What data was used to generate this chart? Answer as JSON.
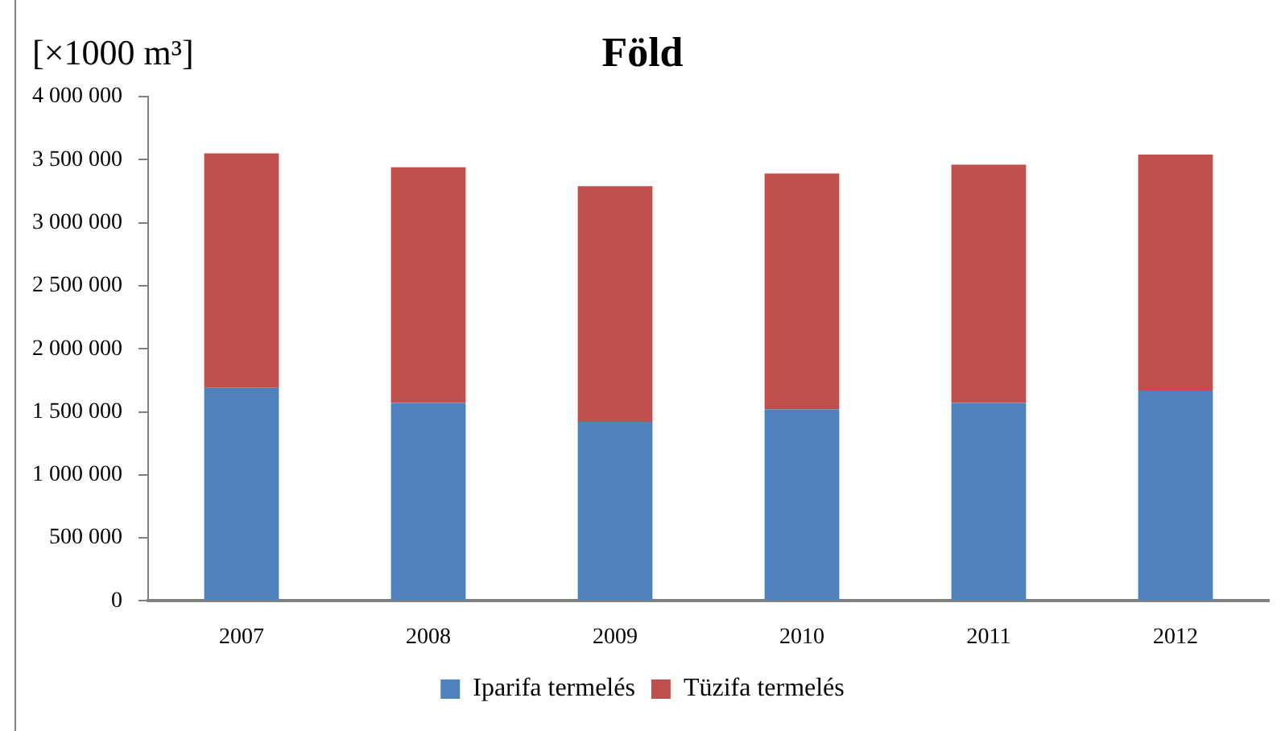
{
  "chart_data": {
    "type": "bar",
    "title": "Föld",
    "ylabel": "[×1000 m³]",
    "categories": [
      "2007",
      "2008",
      "2009",
      "2010",
      "2011",
      "2012"
    ],
    "stacked": true,
    "series": [
      {
        "name": "Iparifa termelés",
        "color": "#4f81bd",
        "values": [
          1690000,
          1570000,
          1420000,
          1520000,
          1570000,
          1670000
        ]
      },
      {
        "name": "Tüzifa termelés",
        "color": "#c0504d",
        "values": [
          1860000,
          1870000,
          1870000,
          1870000,
          1890000,
          1870000
        ]
      }
    ],
    "ylim": [
      0,
      4000000
    ],
    "yticks": [
      {
        "value": 0,
        "label": "0"
      },
      {
        "value": 500000,
        "label": "500 000"
      },
      {
        "value": 1000000,
        "label": "1 000 000"
      },
      {
        "value": 1500000,
        "label": "1 500 000"
      },
      {
        "value": 2000000,
        "label": "2 000 000"
      },
      {
        "value": 2500000,
        "label": "2 500 000"
      },
      {
        "value": 3000000,
        "label": "3 000 000"
      },
      {
        "value": 3500000,
        "label": "3 500 000"
      },
      {
        "value": 4000000,
        "label": "4 000 000"
      }
    ],
    "grid": false,
    "legend": "bottom"
  }
}
